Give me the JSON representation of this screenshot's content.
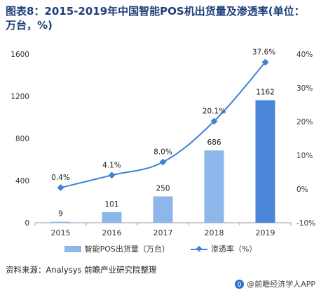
{
  "title": "图表8：2015-2019年中国智能POS机出货量及渗透率(单位：万台，%)",
  "source": "资料来源：Analysys  前瞻产业研究院整理",
  "brand": "@前瞻经济学人APP",
  "colors": {
    "bar": "#8db7ea",
    "bar_last": "#4a86d8",
    "line": "#3f82d6",
    "title": "#1f3f7a"
  },
  "chart_data": {
    "type": "bar",
    "categories": [
      "2015",
      "2016",
      "2017",
      "2018",
      "2019"
    ],
    "series": [
      {
        "name": "智能POS出货量（万台）",
        "type": "bar",
        "axis": "left",
        "values": [
          9,
          101,
          250,
          686,
          1162
        ],
        "labels": [
          "9",
          "101",
          "250",
          "686",
          "1162"
        ]
      },
      {
        "name": "渗透率（%）",
        "type": "line",
        "axis": "right",
        "values": [
          0.4,
          4.1,
          8.0,
          20.1,
          37.6
        ],
        "labels": [
          "0.4%",
          "4.1%",
          "8.0%",
          "20.1%",
          "37.6%"
        ]
      }
    ],
    "y_left": {
      "lim": [
        0,
        1600
      ],
      "ticks": [
        "0",
        "400",
        "800",
        "1200",
        "1600"
      ]
    },
    "y_right": {
      "lim": [
        -10,
        40
      ],
      "ticks": [
        "-10%",
        "0%",
        "10%",
        "20%",
        "30%",
        "40%"
      ]
    },
    "grid": false,
    "legend_position": "bottom"
  }
}
